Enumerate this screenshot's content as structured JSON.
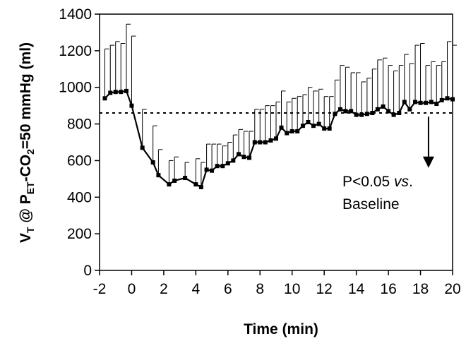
{
  "chart_data": {
    "type": "line",
    "title": "",
    "xlabel": "Time (min)",
    "ylabel_parts": {
      "v": "V",
      "t_sub": "T",
      "mid": " @ P",
      "et_sub": "ET",
      "co": "-CO",
      "two_sub": "2",
      "tail": "=50 mmHg (ml)"
    },
    "xlim": [
      -2,
      20
    ],
    "ylim": [
      0,
      1400
    ],
    "xticks": [
      -2,
      0,
      2,
      4,
      6,
      8,
      10,
      12,
      14,
      16,
      18,
      20
    ],
    "yticks": [
      0,
      200,
      400,
      600,
      800,
      1000,
      1200,
      1400
    ],
    "grid": false,
    "baseline": 860,
    "series": [
      {
        "x": [
          -1.67,
          -1.33,
          -1.0,
          -0.67,
          -0.33,
          0.0,
          0.67,
          1.33,
          1.67,
          2.33,
          2.67,
          3.33,
          4.0,
          4.33,
          4.67,
          5.0,
          5.33,
          5.67,
          6.0,
          6.33,
          6.67,
          7.0,
          7.33,
          7.67,
          8.0,
          8.33,
          8.67,
          9.0,
          9.33,
          9.67,
          10.0,
          10.33,
          10.67,
          11.0,
          11.33,
          11.67,
          12.0,
          12.33,
          12.67,
          13.0,
          13.33,
          13.67,
          14.0,
          14.33,
          14.67,
          15.0,
          15.33,
          15.67,
          16.0,
          16.33,
          16.67,
          17.0,
          17.33,
          17.67,
          18.0,
          18.33,
          18.67,
          19.0,
          19.33,
          19.67,
          20.0
        ],
        "values": [
          940,
          970,
          975,
          975,
          980,
          900,
          670,
          590,
          520,
          470,
          490,
          505,
          470,
          455,
          550,
          545,
          570,
          570,
          585,
          600,
          635,
          620,
          615,
          700,
          700,
          700,
          710,
          720,
          780,
          750,
          760,
          760,
          790,
          810,
          790,
          800,
          775,
          775,
          855,
          880,
          870,
          870,
          850,
          850,
          855,
          860,
          880,
          895,
          870,
          850,
          860,
          920,
          880,
          920,
          915,
          915,
          920,
          910,
          930,
          940,
          935
        ],
        "error_upper": [
          1210,
          1230,
          1250,
          1240,
          1345,
          1280,
          880,
          790,
          660,
          600,
          620,
          590,
          610,
          590,
          690,
          690,
          690,
          680,
          700,
          740,
          770,
          760,
          760,
          880,
          880,
          900,
          900,
          920,
          980,
          920,
          940,
          950,
          960,
          1000,
          980,
          990,
          950,
          950,
          1040,
          1120,
          1110,
          1080,
          1080,
          1030,
          1050,
          1100,
          1150,
          1160,
          1120,
          1090,
          1120,
          1180,
          1130,
          1230,
          1240,
          1120,
          1140,
          1120,
          1140,
          1250,
          1230
        ]
      }
    ],
    "annotation": {
      "line1_prefix": "P<0.05 ",
      "line1_italic": "vs",
      "line1_suffix": ".",
      "line2": "Baseline",
      "arrow_x": 18.5,
      "arrow_y_top": 840,
      "arrow_y_bottom": 560
    }
  }
}
